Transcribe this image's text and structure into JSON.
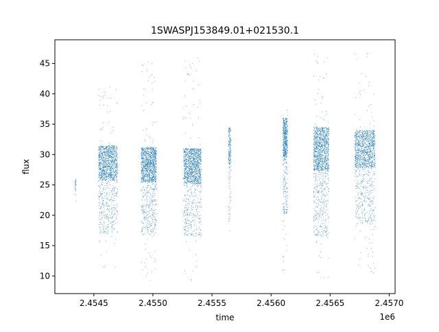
{
  "chart_data": {
    "type": "scatter",
    "title": "1SWASPJ153849.01+021530.1",
    "xlabel": "time",
    "ylabel": "flux",
    "x_offset_label": "1e6",
    "xlim": [
      2.45417,
      2.45705
    ],
    "ylim": [
      7.1,
      48.9
    ],
    "x_ticks": [
      2.4545,
      2.455,
      2.4555,
      2.456,
      2.4565,
      2.457
    ],
    "x_tick_labels": [
      "2.4545",
      "2.4550",
      "2.4555",
      "2.4560",
      "2.4565",
      "2.4570"
    ],
    "y_ticks": [
      10,
      15,
      20,
      25,
      30,
      35,
      40,
      45
    ],
    "y_tick_labels": [
      "10",
      "15",
      "20",
      "25",
      "30",
      "35",
      "40",
      "45"
    ],
    "grid": false,
    "legend": false,
    "series": [
      {
        "color": "#1f77b4",
        "clusters": [
          {
            "x_range": [
              2.45434,
              2.45435
            ],
            "y_core": [
              21.4,
              26.0
            ],
            "y_out": [
              21.4,
              26.0
            ],
            "density": 0.02
          },
          {
            "x_range": [
              2.45454,
              2.4547
            ],
            "y_core": [
              17.0,
              31.5
            ],
            "y_out": [
              11.0,
              42.5
            ],
            "density": 1.0
          },
          {
            "x_range": [
              2.4549,
              2.45503
            ],
            "y_core": [
              16.8,
              31.2
            ],
            "y_out": [
              9.0,
              45.5
            ],
            "density": 1.0
          },
          {
            "x_range": [
              2.45526,
              2.45541
            ],
            "y_core": [
              16.5,
              31.0
            ],
            "y_out": [
              9.2,
              46.3
            ],
            "density": 1.0
          },
          {
            "x_range": [
              2.45564,
              2.45566
            ],
            "y_core": [
              19.0,
              34.5
            ],
            "y_out": [
              16.5,
              36.0
            ],
            "density": 0.15
          },
          {
            "x_range": [
              2.4561,
              2.45614
            ],
            "y_core": [
              20.0,
              36.0
            ],
            "y_out": [
              9.5,
              38.0
            ],
            "density": 0.45
          },
          {
            "x_range": [
              2.45636,
              2.45649
            ],
            "y_core": [
              16.5,
              34.5
            ],
            "y_out": [
              9.5,
              47.0
            ],
            "density": 1.0
          },
          {
            "x_range": [
              2.45671,
              2.45688
            ],
            "y_core": [
              18.5,
              34.0
            ],
            "y_out": [
              9.0,
              47.0
            ],
            "density": 1.0
          }
        ]
      }
    ]
  }
}
